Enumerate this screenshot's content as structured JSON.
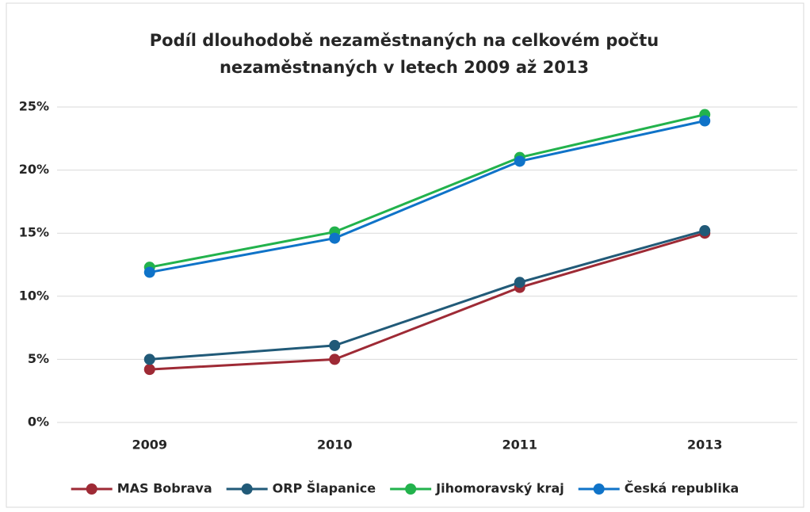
{
  "chart_data": {
    "type": "line",
    "title": "Podíl dlouhodobě nezaměstnaných na celkovém počtu nezaměstnaných v letech 2009 až 2013",
    "categories": [
      "2009",
      "2010",
      "2011",
      "2013"
    ],
    "series": [
      {
        "name": "MAS Bobrava",
        "color": "#9e2a35",
        "values": [
          4.2,
          5.0,
          10.7,
          15.0
        ]
      },
      {
        "name": "ORP Šlapanice",
        "color": "#215a78",
        "values": [
          5.0,
          6.1,
          11.1,
          15.2
        ]
      },
      {
        "name": "Jihomoravský kraj",
        "color": "#22b24c",
        "values": [
          12.3,
          15.1,
          21.0,
          24.4
        ]
      },
      {
        "name": "Česká republika",
        "color": "#0f73c8",
        "values": [
          11.9,
          14.6,
          20.7,
          23.9
        ]
      }
    ],
    "ylim": [
      0,
      25
    ],
    "yticks": [
      {
        "value": 0,
        "label": "0%"
      },
      {
        "value": 5,
        "label": "5%"
      },
      {
        "value": 10,
        "label": "10%"
      },
      {
        "value": 15,
        "label": "15%"
      },
      {
        "value": 20,
        "label": "20%"
      },
      {
        "value": 25,
        "label": "25%"
      }
    ],
    "grid": true,
    "legend": "bottom"
  }
}
